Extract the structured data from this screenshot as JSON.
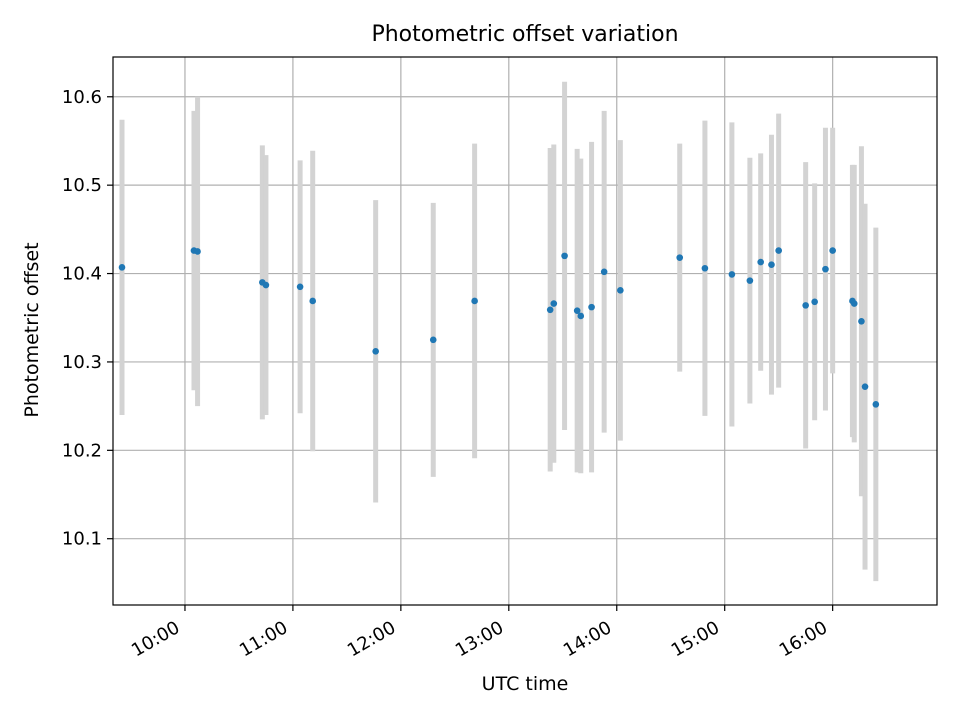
{
  "chart_data": {
    "type": "scatter",
    "title": "Photometric offset variation",
    "xlabel": "UTC time",
    "ylabel": "Photometric offset",
    "x_ticks": [
      "10:00",
      "11:00",
      "12:00",
      "13:00",
      "14:00",
      "15:00",
      "16:00"
    ],
    "y_ticks": [
      "10.1",
      "10.2",
      "10.3",
      "10.4",
      "10.5",
      "10.6"
    ],
    "xlim": [
      "09:20",
      "16:58"
    ],
    "ylim": [
      10.025,
      10.645
    ],
    "grid": true,
    "marker_color": "#1f77b4",
    "errorbar_color": "#d3d3d3",
    "points": [
      {
        "t": "09:25",
        "y": 10.407,
        "err": 0.167
      },
      {
        "t": "10:05",
        "y": 10.426,
        "err": 0.158
      },
      {
        "t": "10:07",
        "y": 10.425,
        "err": 0.175
      },
      {
        "t": "10:43",
        "y": 10.39,
        "err": 0.155
      },
      {
        "t": "10:45",
        "y": 10.387,
        "err": 0.147
      },
      {
        "t": "11:04",
        "y": 10.385,
        "err": 0.143
      },
      {
        "t": "11:11",
        "y": 10.369,
        "err": 0.17
      },
      {
        "t": "11:46",
        "y": 10.312,
        "err": 0.171
      },
      {
        "t": "12:18",
        "y": 10.325,
        "err": 0.155
      },
      {
        "t": "12:41",
        "y": 10.369,
        "err": 0.178
      },
      {
        "t": "13:23",
        "y": 10.359,
        "err": 0.183
      },
      {
        "t": "13:25",
        "y": 10.366,
        "err": 0.18
      },
      {
        "t": "13:31",
        "y": 10.42,
        "err": 0.197
      },
      {
        "t": "13:38",
        "y": 10.358,
        "err": 0.183
      },
      {
        "t": "13:40",
        "y": 10.352,
        "err": 0.178
      },
      {
        "t": "13:46",
        "y": 10.362,
        "err": 0.187
      },
      {
        "t": "13:53",
        "y": 10.402,
        "err": 0.182
      },
      {
        "t": "14:02",
        "y": 10.381,
        "err": 0.17
      },
      {
        "t": "14:35",
        "y": 10.418,
        "err": 0.129
      },
      {
        "t": "14:49",
        "y": 10.406,
        "err": 0.167
      },
      {
        "t": "15:04",
        "y": 10.399,
        "err": 0.172
      },
      {
        "t": "15:14",
        "y": 10.392,
        "err": 0.139
      },
      {
        "t": "15:20",
        "y": 10.413,
        "err": 0.123
      },
      {
        "t": "15:26",
        "y": 10.41,
        "err": 0.147
      },
      {
        "t": "15:30",
        "y": 10.426,
        "err": 0.155
      },
      {
        "t": "15:45",
        "y": 10.364,
        "err": 0.162
      },
      {
        "t": "15:50",
        "y": 10.368,
        "err": 0.134
      },
      {
        "t": "15:56",
        "y": 10.405,
        "err": 0.16
      },
      {
        "t": "16:00",
        "y": 10.426,
        "err": 0.139
      },
      {
        "t": "16:11",
        "y": 10.369,
        "err": 0.154
      },
      {
        "t": "16:12",
        "y": 10.366,
        "err": 0.157
      },
      {
        "t": "16:16",
        "y": 10.346,
        "err": 0.198
      },
      {
        "t": "16:18",
        "y": 10.272,
        "err": 0.207
      },
      {
        "t": "16:24",
        "y": 10.252,
        "err": 0.2
      }
    ]
  }
}
